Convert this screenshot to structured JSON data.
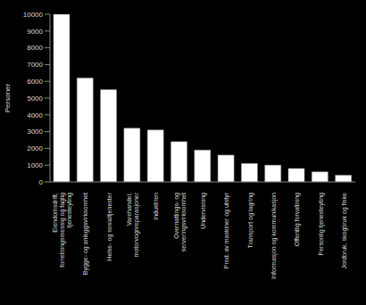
{
  "chart_data": {
    "type": "bar",
    "y_label": "Personer",
    "categories": [
      "Eiendomsdrift, forretningsmessig og faglig tjenesteyting",
      "Bygge- og anleggsvirksomhet",
      "Helse- og sosialtjenester",
      "Varehandel, motorvognreparasjoner",
      "Industrien",
      "Overnattings- og serveringsvirksomhet",
      "Undervisning",
      "Prod. av maskiner og utstyr",
      "Transport og lagring",
      "Informasjon og kommunikasjon",
      "Offentlig forvaltning",
      "Personlig tjenesteyting",
      "Jordbruk, skogbruk og fiske"
    ],
    "values": [
      10000,
      6200,
      5500,
      3200,
      3100,
      2400,
      1900,
      1600,
      1100,
      1000,
      800,
      600,
      400
    ],
    "color": "#ffffff",
    "ylim": [
      0,
      10000
    ],
    "yticks": [
      0,
      1000,
      2000,
      3000,
      4000,
      5000,
      6000,
      7000,
      8000,
      9000,
      10000
    ],
    "grid": false
  }
}
